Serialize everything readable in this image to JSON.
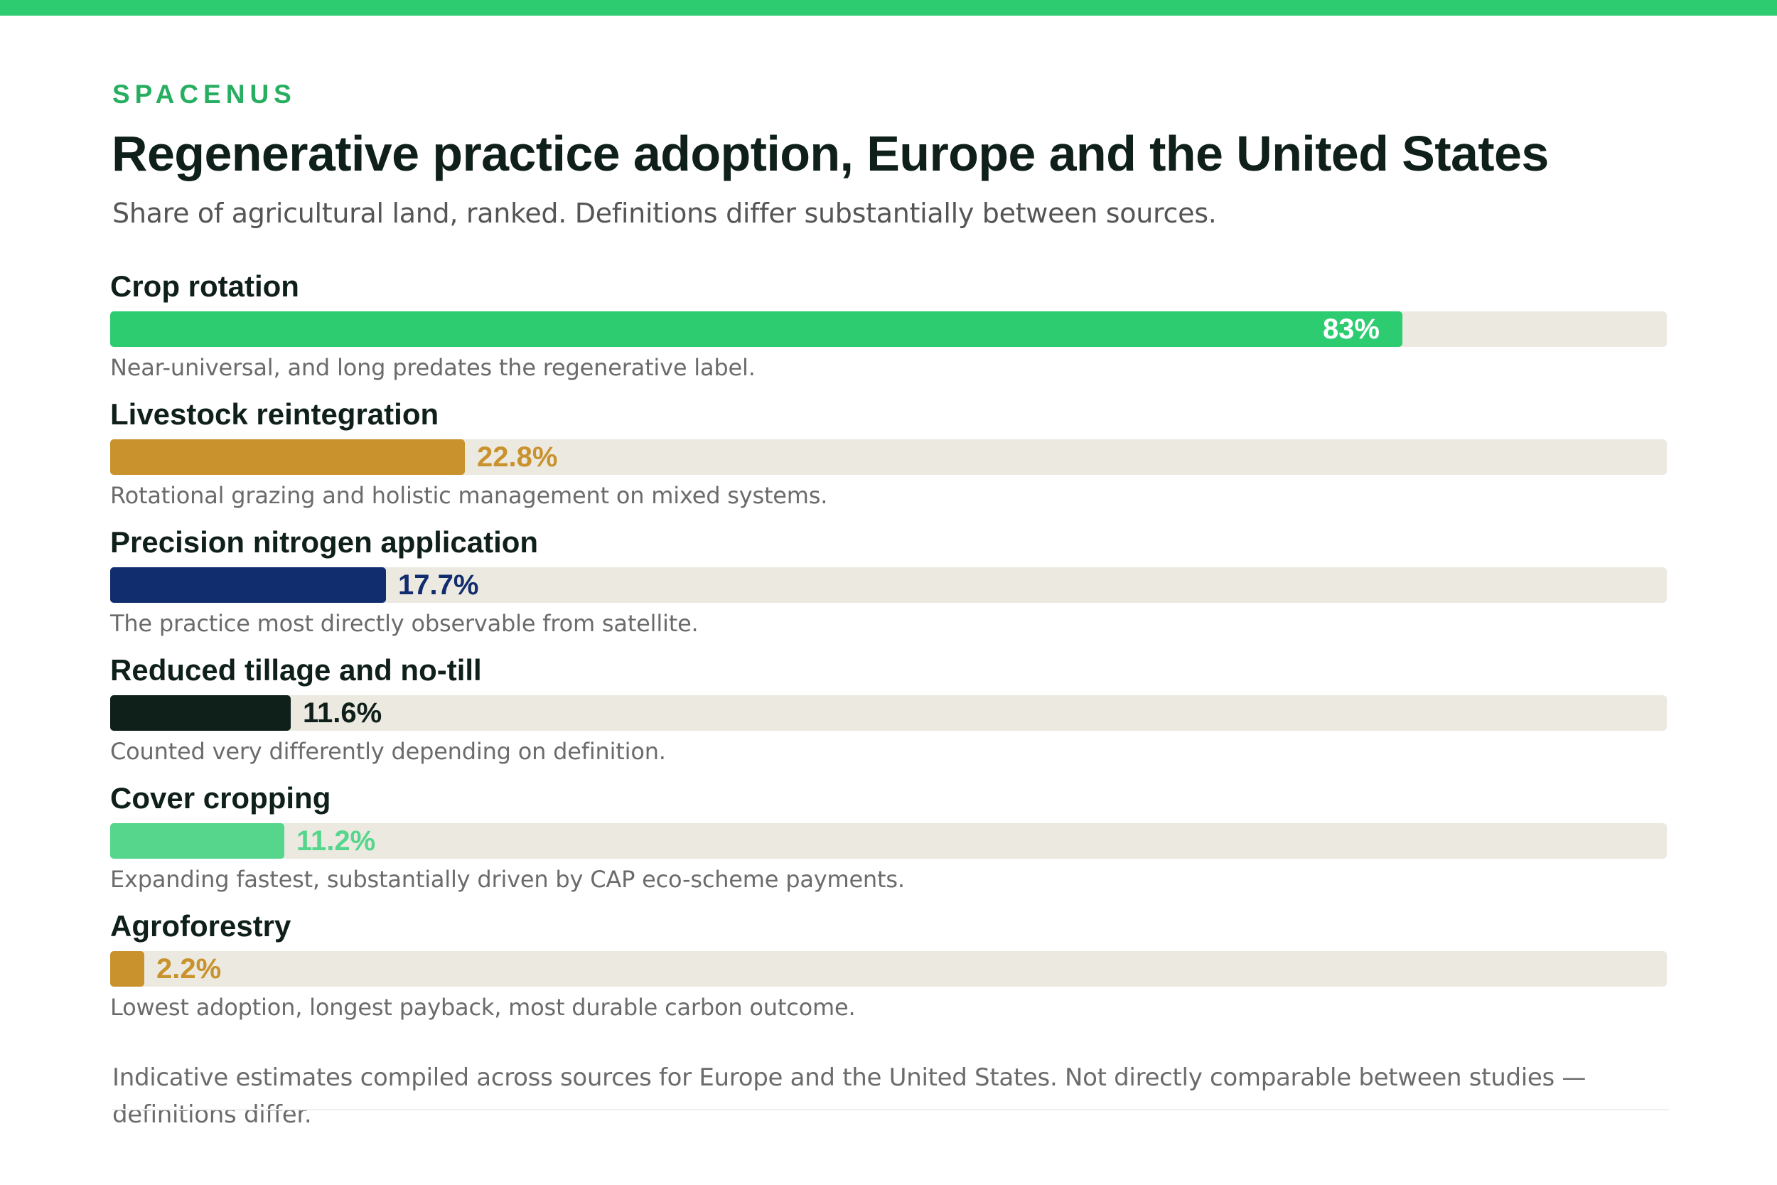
{
  "brand": "SPACENUS",
  "header": {
    "title": "Regenerative practice adoption, Europe and the United States",
    "subtitle": "Share of agricultural land, ranked. Definitions differ substantially between sources."
  },
  "footnote": "Indicative estimates compiled across sources for Europe and the United States. Not directly comparable between studies — definitions differ.",
  "chart_data": {
    "type": "bar",
    "orientation": "horizontal",
    "xlim": [
      0,
      100
    ],
    "unit": "%",
    "categories": [
      "Crop rotation",
      "Livestock reintegration",
      "Precision nitrogen application",
      "Reduced tillage and no-till",
      "Cover cropping",
      "Agroforestry"
    ],
    "values": [
      83,
      22.8,
      17.7,
      11.6,
      11.2,
      2.2
    ],
    "value_labels": [
      "83%",
      "22.8%",
      "17.7%",
      "11.6%",
      "11.2%",
      "2.2%"
    ],
    "notes": [
      "Near-universal, and long predates the regenerative label.",
      "Rotational grazing and holistic management on mixed systems.",
      "The practice most directly observable from satellite.",
      "Counted very differently depending on definition.",
      "Expanding fastest, substantially driven by CAP eco-scheme payments.",
      "Lowest adoption, longest payback, most durable carbon outcome."
    ],
    "colors": [
      "#2ecc71",
      "#c9922c",
      "#112d6e",
      "#0f1f1a",
      "#55d68c",
      "#c9922c"
    ],
    "label_inside": [
      true,
      false,
      false,
      false,
      false,
      false
    ],
    "track_color": "#ece9e1",
    "grid": false,
    "legend": "none"
  }
}
